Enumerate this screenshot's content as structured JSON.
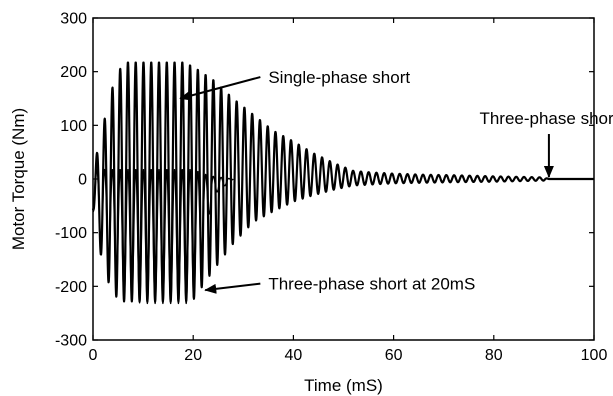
{
  "chart_data": {
    "type": "line",
    "title": "",
    "xlabel": "Time (mS)",
    "ylabel": "Motor Torque (Nm)",
    "xlim": [
      0,
      100
    ],
    "ylim": [
      -300,
      300
    ],
    "x_ticks": [
      "0",
      "20",
      "40",
      "60",
      "80",
      "100"
    ],
    "y_ticks": [
      "300",
      "200",
      "100",
      "0",
      "-100",
      "-200",
      "-300"
    ],
    "grid": false,
    "legend": "none",
    "series": [
      {
        "color": "#000000",
        "envelope": {
          "x": [
            0,
            2,
            4,
            6,
            8,
            10,
            14,
            18,
            20,
            24,
            28,
            32,
            36,
            40,
            44,
            48,
            52,
            56,
            60,
            66,
            72,
            80,
            90,
            91,
            100
          ],
          "upper": [
            15,
            100,
            175,
            218,
            218,
            218,
            218,
            218,
            210,
            185,
            150,
            120,
            90,
            70,
            48,
            30,
            15,
            12,
            10,
            8,
            7,
            5,
            3,
            0,
            0
          ],
          "lower": [
            -55,
            -165,
            -215,
            -228,
            -228,
            -228,
            -228,
            -228,
            -225,
            -170,
            -120,
            -80,
            -60,
            -42,
            -30,
            -20,
            -12,
            -10,
            -8,
            -7,
            -6,
            -5,
            -3,
            0,
            0
          ]
        },
        "period": 1.55
      },
      {
        "color": "#000000",
        "envelope": {
          "x": [
            0,
            2,
            6,
            10,
            14,
            18,
            20,
            22,
            24,
            28
          ],
          "upper": [
            18,
            18,
            18,
            18,
            18,
            18,
            18,
            10,
            5,
            0
          ],
          "lower": [
            -60,
            -130,
            -225,
            -232,
            -232,
            -232,
            -232,
            -120,
            -30,
            0
          ]
        },
        "period": 1.55
      }
    ],
    "annotations": [
      {
        "text": "Single-phase short",
        "target": [
          17,
          150
        ],
        "label_x": 35,
        "label_y": 190
      },
      {
        "text": "Three-phase short at 20mS",
        "target": [
          22,
          -207
        ],
        "label_x": 35,
        "label_y": -195
      },
      {
        "text": "Three-phase short",
        "target": [
          91,
          0
        ],
        "label_x": 91,
        "label_y": 95
      }
    ]
  }
}
